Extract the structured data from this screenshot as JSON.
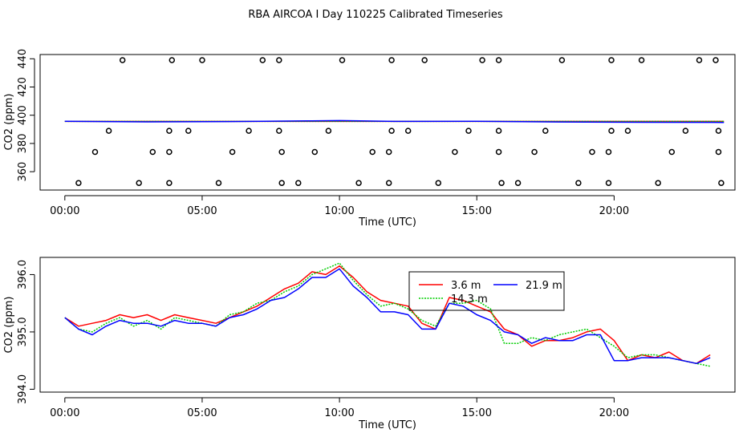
{
  "title": "RBA AIRCOA I  Day 110225  Calibrated Timeseries",
  "colors": {
    "series_3_6": "#ff0000",
    "series_14_3": "#00cd00",
    "series_21_9": "#0000ff",
    "axis": "#000000",
    "background": "#ffffff"
  },
  "chart_data": [
    {
      "type": "line",
      "title": "",
      "xlabel": "Time (UTC)",
      "ylabel": "CO2 (ppm)",
      "xlim": [
        -0.9,
        24.4
      ],
      "ylim": [
        347,
        443
      ],
      "x_ticks": [
        0,
        5,
        10,
        15,
        20
      ],
      "x_tick_labels": [
        "00:00",
        "05:00",
        "10:00",
        "15:00",
        "20:00"
      ],
      "y_ticks": [
        360,
        380,
        400,
        420,
        440
      ],
      "y_tick_labels": [
        "360",
        "380",
        "400",
        "420",
        "440"
      ],
      "series": [
        {
          "name": "3.6 m",
          "color": "#ff0000",
          "x": [
            0,
            24
          ],
          "y": [
            395.6,
            395.6
          ]
        },
        {
          "name": "14.3 m",
          "color": "#00cd00",
          "x": [
            0,
            24
          ],
          "y": [
            395.6,
            395.6
          ]
        },
        {
          "name": "21.9 m",
          "color": "#0000ff",
          "x": [
            0,
            3,
            6,
            9,
            10,
            12,
            15,
            18,
            21,
            24
          ],
          "y": [
            395.7,
            395.3,
            395.5,
            396.0,
            396.2,
            395.6,
            395.7,
            395.2,
            395.0,
            394.9
          ]
        }
      ],
      "markers": {
        "shape": "open-circle",
        "x": [
          2.1,
          3.9,
          5.0,
          7.2,
          7.8,
          10.1,
          11.9,
          13.1,
          15.2,
          15.8,
          18.1,
          19.9,
          21.0,
          23.1,
          23.7,
          1.6,
          3.8,
          4.5,
          6.7,
          7.8,
          9.6,
          11.9,
          12.5,
          14.7,
          15.8,
          17.5,
          19.9,
          20.5,
          22.6,
          23.8,
          1.1,
          3.2,
          3.8,
          6.1,
          7.9,
          9.1,
          11.2,
          11.8,
          14.2,
          15.8,
          17.1,
          19.2,
          19.8,
          22.1,
          23.8,
          0.5,
          2.7,
          3.8,
          5.6,
          7.9,
          8.5,
          10.7,
          11.8,
          13.6,
          15.9,
          16.5,
          18.7,
          19.8,
          21.6,
          23.9
        ],
        "y": [
          439,
          439,
          439,
          439,
          439,
          439,
          439,
          439,
          439,
          439,
          439,
          439,
          439,
          439,
          439,
          389,
          389,
          389,
          389,
          389,
          389,
          389,
          389,
          389,
          389,
          389,
          389,
          389,
          389,
          389,
          374,
          374,
          374,
          374,
          374,
          374,
          374,
          374,
          374,
          374,
          374,
          374,
          374,
          374,
          374,
          352,
          352,
          352,
          352,
          352,
          352,
          352,
          352,
          352,
          352,
          352,
          352,
          352,
          352,
          352
        ]
      }
    },
    {
      "type": "line",
      "title": "",
      "xlabel": "Time (UTC)",
      "ylabel": "CO2 (ppm)",
      "xlim": [
        -0.9,
        24.4
      ],
      "ylim": [
        393.95,
        396.3
      ],
      "x_ticks": [
        0,
        5,
        10,
        15,
        20
      ],
      "x_tick_labels": [
        "00:00",
        "05:00",
        "10:00",
        "15:00",
        "20:00"
      ],
      "y_ticks": [
        394.0,
        395.0,
        396.0
      ],
      "y_tick_labels": [
        "394.0",
        "395.0",
        "396.0"
      ],
      "legend": {
        "position": "top-center",
        "columns": 2
      },
      "series": [
        {
          "name": "3.6 m",
          "color": "#ff0000",
          "x": [
            0,
            0.5,
            1,
            1.5,
            2,
            2.5,
            3,
            3.5,
            4,
            4.5,
            5,
            5.5,
            6,
            6.5,
            7,
            7.5,
            8,
            8.5,
            9,
            9.5,
            10,
            10.5,
            11,
            11.5,
            12,
            12.5,
            13,
            13.5,
            14,
            14.5,
            15,
            15.5,
            16,
            16.5,
            17,
            17.5,
            18,
            18.5,
            19,
            19.5,
            20,
            20.5,
            21,
            21.5,
            22,
            22.5,
            23,
            23.5
          ],
          "y": [
            395.25,
            395.1,
            395.15,
            395.2,
            395.3,
            395.25,
            395.3,
            395.2,
            395.3,
            395.25,
            395.2,
            395.15,
            395.25,
            395.35,
            395.45,
            395.6,
            395.75,
            395.85,
            396.05,
            396.0,
            396.15,
            395.95,
            395.7,
            395.55,
            395.5,
            395.45,
            395.15,
            395.05,
            395.6,
            395.55,
            395.45,
            395.35,
            395.05,
            394.95,
            394.75,
            394.85,
            394.85,
            394.9,
            395.0,
            395.05,
            394.85,
            394.5,
            394.6,
            394.55,
            394.65,
            394.5,
            394.45,
            394.6
          ]
        },
        {
          "name": "14.3 m",
          "color": "#00cd00",
          "x": [
            0,
            0.5,
            1,
            1.5,
            2,
            2.5,
            3,
            3.5,
            4,
            4.5,
            5,
            5.5,
            6,
            6.5,
            7,
            7.5,
            8,
            8.5,
            9,
            9.5,
            10,
            10.5,
            11,
            11.5,
            12,
            12.5,
            13,
            13.5,
            14,
            14.5,
            15,
            15.5,
            16,
            16.5,
            17,
            17.5,
            18,
            18.5,
            19,
            19.5,
            20,
            20.5,
            21,
            21.5,
            22,
            22.5,
            23,
            23.5
          ],
          "y": [
            395.25,
            395.05,
            395.0,
            395.15,
            395.25,
            395.1,
            395.2,
            395.05,
            395.25,
            395.2,
            395.15,
            395.1,
            395.3,
            395.35,
            395.5,
            395.55,
            395.7,
            395.8,
            396.0,
            396.1,
            396.2,
            395.9,
            395.65,
            395.45,
            395.5,
            395.4,
            395.2,
            395.1,
            395.5,
            395.5,
            395.55,
            395.4,
            394.8,
            394.8,
            394.9,
            394.85,
            394.95,
            395.0,
            395.05,
            394.9,
            394.75,
            394.55,
            394.6,
            394.6,
            394.55,
            394.5,
            394.45,
            394.4
          ]
        },
        {
          "name": "21.9 m",
          "color": "#0000ff",
          "x": [
            0,
            0.5,
            1,
            1.5,
            2,
            2.5,
            3,
            3.5,
            4,
            4.5,
            5,
            5.5,
            6,
            6.5,
            7,
            7.5,
            8,
            8.5,
            9,
            9.5,
            10,
            10.5,
            11,
            11.5,
            12,
            12.5,
            13,
            13.5,
            14,
            14.5,
            15,
            15.5,
            16,
            16.5,
            17,
            17.5,
            18,
            18.5,
            19,
            19.5,
            20,
            20.5,
            21,
            21.5,
            22,
            22.5,
            23,
            23.5
          ],
          "y": [
            395.25,
            395.05,
            394.95,
            395.1,
            395.2,
            395.15,
            395.15,
            395.1,
            395.2,
            395.15,
            395.15,
            395.1,
            395.25,
            395.3,
            395.4,
            395.55,
            395.6,
            395.75,
            395.95,
            395.95,
            396.1,
            395.8,
            395.6,
            395.35,
            395.35,
            395.3,
            395.05,
            395.05,
            395.5,
            395.45,
            395.3,
            395.2,
            395.0,
            394.95,
            394.8,
            394.9,
            394.85,
            394.85,
            394.95,
            394.95,
            394.5,
            394.5,
            394.55,
            394.55,
            394.55,
            394.5,
            394.45,
            394.55
          ]
        }
      ]
    }
  ]
}
